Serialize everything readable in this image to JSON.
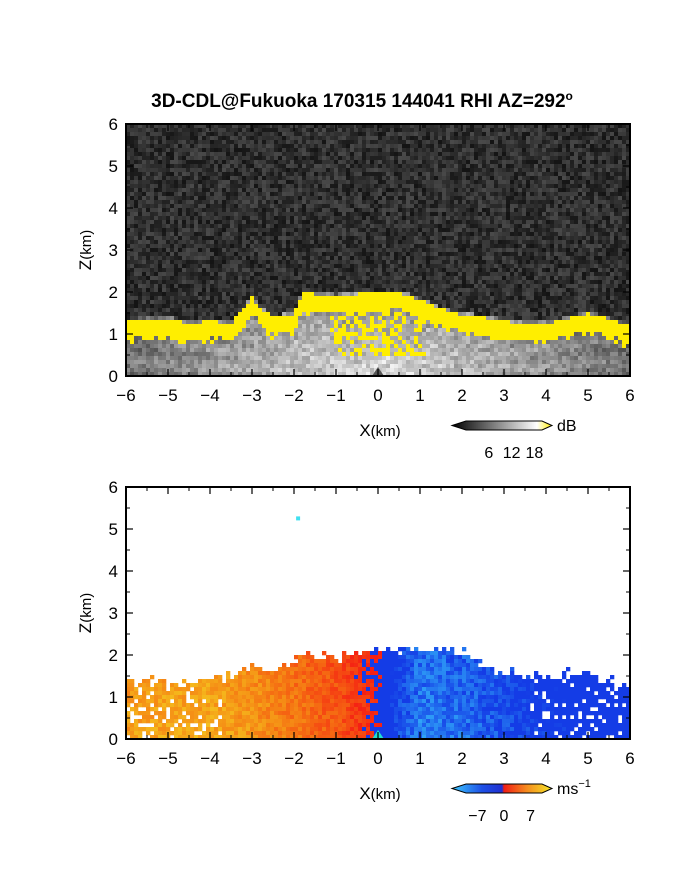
{
  "chart_data": [
    {
      "type": "heatmap",
      "title": "3D-CDL@Fukuoka 170315 144041 RHI AZ=292",
      "title_degree": "o",
      "xlabel_main": "X",
      "xlabel_unit": "(km)",
      "ylabel_main": "Z",
      "ylabel_unit": "(km)",
      "xlim": [
        -6,
        6
      ],
      "ylim": [
        0,
        6
      ],
      "xticks": [
        "-6",
        "-5",
        "-4",
        "-3",
        "-2",
        "-1",
        "0",
        "1",
        "2",
        "3",
        "4",
        "5",
        "6"
      ],
      "yticks": [
        "0",
        "1",
        "2",
        "3",
        "4",
        "5",
        "6"
      ],
      "field": "SNR",
      "colorbar": {
        "label": "dB",
        "ticks": [
          "6",
          "12",
          "18"
        ],
        "range": [
          0,
          20
        ],
        "colors": [
          "#000000",
          "#ffffff",
          "#ffee00"
        ]
      },
      "cloud_top_km": [
        [
          -6,
          1.3
        ],
        [
          -5.5,
          1.35
        ],
        [
          -5,
          1.35
        ],
        [
          -4.5,
          1.25
        ],
        [
          -4,
          1.3
        ],
        [
          -3.5,
          1.25
        ],
        [
          -3.2,
          1.6
        ],
        [
          -3,
          1.9
        ],
        [
          -2.8,
          1.6
        ],
        [
          -2.5,
          1.4
        ],
        [
          -2,
          1.45
        ],
        [
          -1.8,
          2.0
        ],
        [
          -1.5,
          1.95
        ],
        [
          -1,
          1.9
        ],
        [
          -0.5,
          1.95
        ],
        [
          0,
          2.0
        ],
        [
          0.3,
          1.95
        ],
        [
          0.5,
          2.0
        ],
        [
          1,
          1.8
        ],
        [
          1.5,
          1.6
        ],
        [
          2,
          1.45
        ],
        [
          2.5,
          1.4
        ],
        [
          3,
          1.3
        ],
        [
          3.5,
          1.25
        ],
        [
          4,
          1.25
        ],
        [
          4.5,
          1.35
        ],
        [
          5,
          1.5
        ],
        [
          5.5,
          1.35
        ],
        [
          6,
          1.2
        ]
      ]
    },
    {
      "type": "heatmap",
      "xlabel_main": "X",
      "xlabel_unit": "(km)",
      "ylabel_main": "Z",
      "ylabel_unit": "(km)",
      "xlim": [
        -6,
        6
      ],
      "ylim": [
        0,
        6
      ],
      "xticks": [
        "-6",
        "-5",
        "-4",
        "-3",
        "-2",
        "-1",
        "0",
        "1",
        "2",
        "3",
        "4",
        "5",
        "6"
      ],
      "yticks": [
        "0",
        "1",
        "2",
        "3",
        "4",
        "5",
        "6"
      ],
      "field": "Doppler velocity",
      "colorbar": {
        "label": "ms",
        "label_exp": "−1",
        "ticks": [
          "−7",
          "0",
          "7"
        ],
        "range": [
          -10,
          10
        ]
      },
      "echo_top_km": [
        [
          -6,
          1.4
        ],
        [
          -5.5,
          1.45
        ],
        [
          -5,
          1.4
        ],
        [
          -4.5,
          1.3
        ],
        [
          -4,
          1.4
        ],
        [
          -3.5,
          1.5
        ],
        [
          -3,
          1.75
        ],
        [
          -2.5,
          1.6
        ],
        [
          -2,
          1.9
        ],
        [
          -1.5,
          2.0
        ],
        [
          -1,
          1.95
        ],
        [
          -0.5,
          2.05
        ],
        [
          0,
          2.15
        ],
        [
          0.5,
          2.1
        ],
        [
          1,
          2.15
        ],
        [
          1.5,
          2.1
        ],
        [
          2,
          2.05
        ],
        [
          2.5,
          1.8
        ],
        [
          3,
          1.6
        ],
        [
          3.5,
          1.5
        ],
        [
          4,
          1.45
        ],
        [
          4.5,
          1.55
        ],
        [
          5,
          1.5
        ],
        [
          5.5,
          1.4
        ],
        [
          6,
          1.25
        ]
      ],
      "velocity_profile": [
        [
          -6,
          6.5
        ],
        [
          -4,
          7
        ],
        [
          -3,
          6
        ],
        [
          -2,
          4.5
        ],
        [
          -1,
          3
        ],
        [
          -0.3,
          1
        ],
        [
          0,
          0
        ],
        [
          0.3,
          -5
        ],
        [
          1,
          -7.5
        ],
        [
          2,
          -7
        ],
        [
          3,
          -6
        ],
        [
          4,
          -5
        ],
        [
          5,
          -4.5
        ],
        [
          6,
          -4
        ]
      ],
      "isolated_echo": {
        "x": -1.95,
        "z": 5.3
      }
    }
  ]
}
